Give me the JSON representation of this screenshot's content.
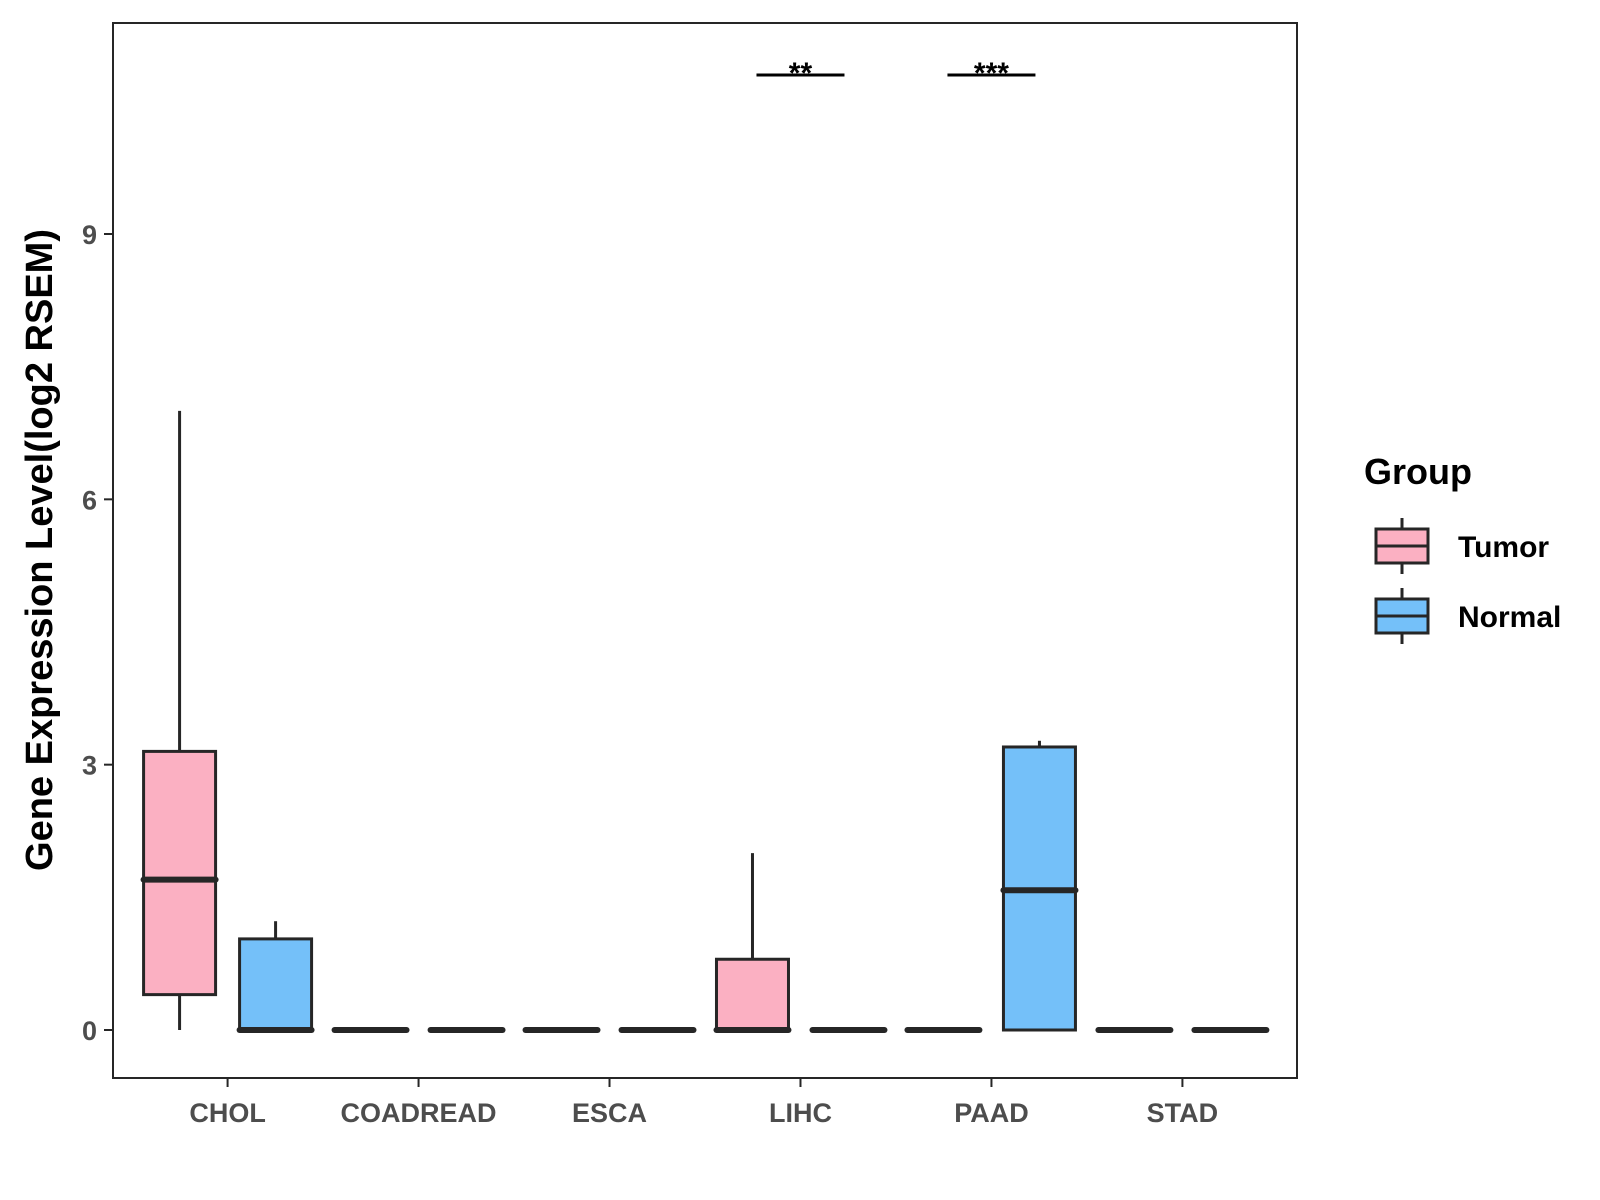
{
  "chart_data": {
    "type": "box",
    "title": "",
    "xlabel": "",
    "ylabel": "Gene Expression Level(log2 RSEM)",
    "categories": [
      "CHOL",
      "COADREAD",
      "ESCA",
      "LIHC",
      "PAAD",
      "STAD"
    ],
    "ylim": [
      -0.55,
      11.3
    ],
    "yticks": [
      0,
      3,
      6,
      9
    ],
    "grid": false,
    "legend": {
      "title": "Group",
      "placement": "right",
      "entries": [
        "Tumor",
        "Normal"
      ]
    },
    "series": [
      {
        "name": "Tumor",
        "color": "#FBB0C2",
        "boxes": [
          {
            "category": "CHOL",
            "min": 0,
            "q1": 0.4,
            "median": 1.7,
            "q3": 3.15,
            "max": 7.0
          },
          {
            "category": "COADREAD",
            "min": 0,
            "q1": 0,
            "median": 0,
            "q3": 0,
            "max": 0
          },
          {
            "category": "ESCA",
            "min": 0,
            "q1": 0,
            "median": 0,
            "q3": 0,
            "max": 0
          },
          {
            "category": "LIHC",
            "min": 0,
            "q1": 0,
            "median": 0,
            "q3": 0.8,
            "max": 2.0
          },
          {
            "category": "PAAD",
            "min": 0,
            "q1": 0,
            "median": 0,
            "q3": 0,
            "max": 0
          },
          {
            "category": "STAD",
            "min": 0,
            "q1": 0,
            "median": 0,
            "q3": 0,
            "max": 0
          }
        ]
      },
      {
        "name": "Normal",
        "color": "#74C0F9",
        "boxes": [
          {
            "category": "CHOL",
            "min": 0,
            "q1": 0,
            "median": 0,
            "q3": 1.03,
            "max": 1.23
          },
          {
            "category": "COADREAD",
            "min": 0,
            "q1": 0,
            "median": 0,
            "q3": 0,
            "max": 0
          },
          {
            "category": "ESCA",
            "min": 0,
            "q1": 0,
            "median": 0,
            "q3": 0,
            "max": 0
          },
          {
            "category": "LIHC",
            "min": 0,
            "q1": 0,
            "median": 0,
            "q3": 0,
            "max": 0
          },
          {
            "category": "PAAD",
            "min": 0,
            "q1": 0,
            "median": 1.58,
            "q3": 3.2,
            "max": 3.27
          },
          {
            "category": "STAD",
            "min": 0,
            "q1": 0,
            "median": 0,
            "q3": 0,
            "max": 0
          }
        ]
      }
    ],
    "annotations": [
      {
        "category": "LIHC",
        "label": "**"
      },
      {
        "category": "PAAD",
        "label": "***"
      }
    ]
  },
  "colors": {
    "tumor": "#FBB0C2",
    "normal": "#74C0F9",
    "outline": "#262626"
  }
}
